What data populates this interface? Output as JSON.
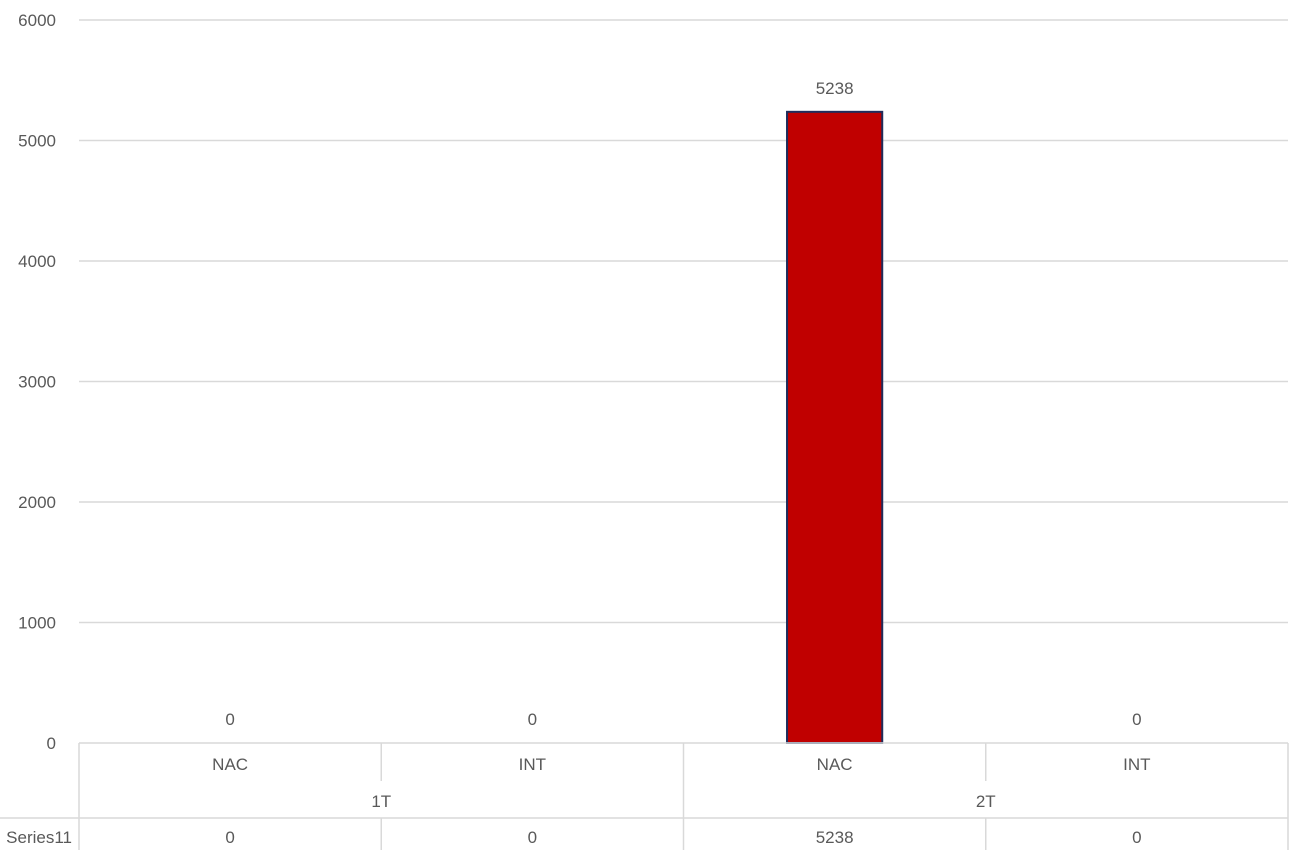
{
  "chart_data": {
    "type": "bar",
    "title": "",
    "xlabel": "",
    "ylabel": "",
    "ylim": [
      0,
      6000
    ],
    "yticks": [
      "0",
      "1000",
      "2000",
      "3000",
      "4000",
      "5000",
      "6000"
    ],
    "grid": true,
    "groups": [
      {
        "label": "1T",
        "categories": [
          "NAC",
          "INT"
        ]
      },
      {
        "label": "2T",
        "categories": [
          "NAC",
          "INT"
        ]
      }
    ],
    "categories": [
      "NAC",
      "INT",
      "NAC",
      "INT"
    ],
    "series": [
      {
        "name": "Series11",
        "values": [
          0,
          0,
          5238,
          0
        ],
        "data_labels": [
          "0",
          "0",
          "5238",
          "0"
        ],
        "table_values": [
          "0",
          "0",
          "5238",
          "0"
        ],
        "color": "#C00000",
        "border_color": "#1F2D5C"
      }
    ],
    "data_table": true
  }
}
